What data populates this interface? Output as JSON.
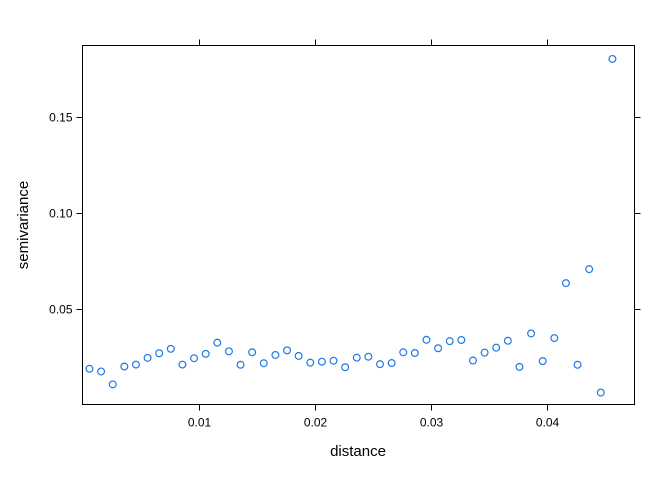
{
  "chart_data": {
    "type": "scatter",
    "title": "",
    "xlabel": "distance",
    "ylabel": "semivariance",
    "xlim": [
      0,
      0.0475
    ],
    "ylim": [
      0,
      0.187
    ],
    "x_ticks": [
      0.01,
      0.02,
      0.03,
      0.04
    ],
    "x_tick_labels": [
      "0.01",
      "0.02",
      "0.03",
      "0.04"
    ],
    "y_ticks": [
      0.05,
      0.1,
      0.15
    ],
    "y_tick_labels": [
      "0.05",
      "0.10",
      "0.15"
    ],
    "grid": false,
    "legend": "none",
    "point_color": "#1f78e4",
    "series": [
      {
        "x": [
          0.0006,
          0.0016,
          0.0026,
          0.0036,
          0.0046,
          0.0056,
          0.0066,
          0.0076,
          0.0086,
          0.0096,
          0.0106,
          0.0116,
          0.0126,
          0.0136,
          0.0146,
          0.0156,
          0.0166,
          0.0176,
          0.0186,
          0.0196,
          0.0206,
          0.0216,
          0.0226,
          0.0236,
          0.0246,
          0.0256,
          0.0266,
          0.0276,
          0.0286,
          0.0296,
          0.0306,
          0.0316,
          0.0326,
          0.0336,
          0.0346,
          0.0356,
          0.0366,
          0.0376,
          0.0386,
          0.0396,
          0.0406,
          0.0416,
          0.0426,
          0.0436,
          0.0446,
          0.0456
        ],
        "y": [
          0.0186,
          0.0172,
          0.0105,
          0.0198,
          0.0208,
          0.0243,
          0.0267,
          0.029,
          0.0208,
          0.0241,
          0.0264,
          0.0322,
          0.0277,
          0.0207,
          0.0272,
          0.0215,
          0.0258,
          0.0282,
          0.0253,
          0.0218,
          0.0223,
          0.0228,
          0.0194,
          0.0244,
          0.0249,
          0.021,
          0.0216,
          0.0272,
          0.0268,
          0.0337,
          0.0293,
          0.033,
          0.0336,
          0.0229,
          0.027,
          0.0296,
          0.0332,
          0.0196,
          0.037,
          0.0226,
          0.0346,
          0.0632,
          0.0207,
          0.0705,
          0.0062,
          0.18
        ]
      }
    ]
  }
}
